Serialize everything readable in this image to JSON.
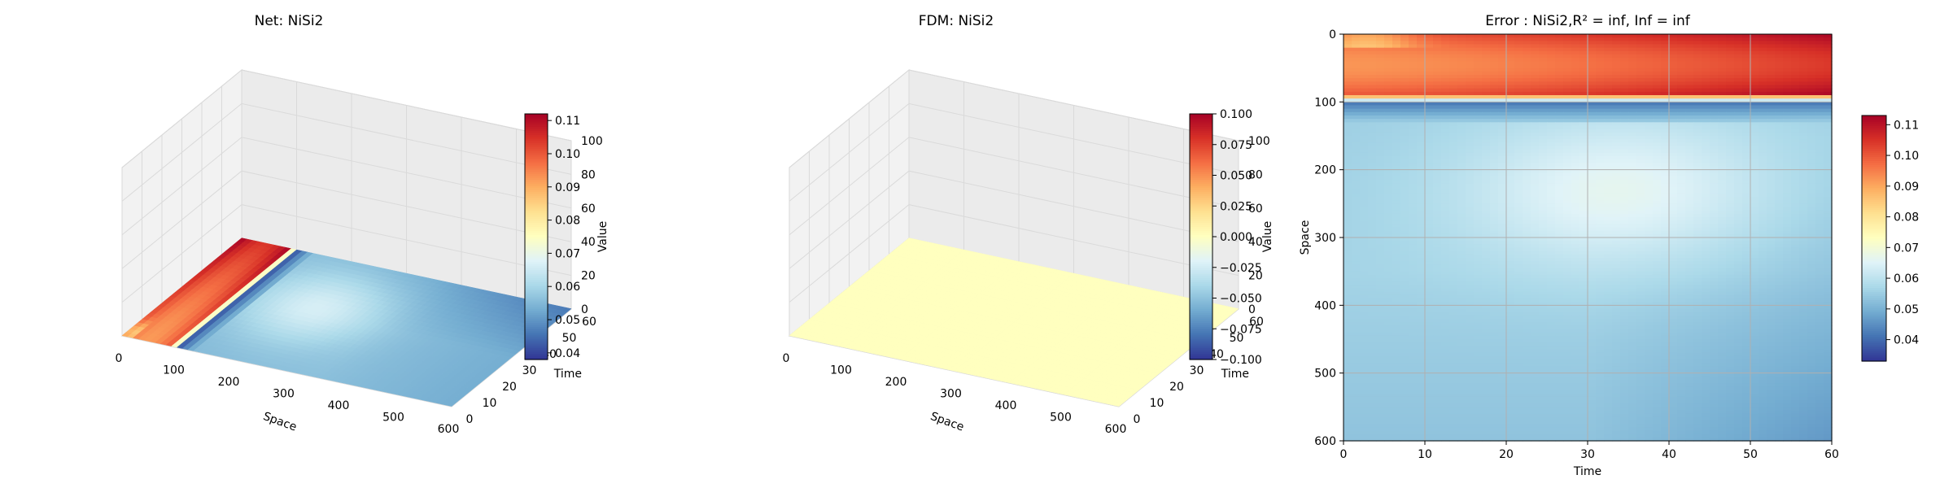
{
  "colors": {
    "rdylbu_r": [
      "#313695",
      "#4575b4",
      "#74add1",
      "#abd9e9",
      "#e0f3f8",
      "#ffffbf",
      "#fee090",
      "#fdae61",
      "#f46d43",
      "#d73027",
      "#a50026"
    ],
    "grid": "#b0b0b0",
    "pane_face": "#f2f2f2",
    "pane_edge": "#cfcfcf"
  },
  "chart_data": [
    {
      "id": "net",
      "type": "surface3d",
      "title": "Net: NiSi2",
      "xlabel": "Space",
      "ylabel": "Time",
      "zlabel": "",
      "xticks": [
        "0",
        "100",
        "200",
        "300",
        "400",
        "500",
        "600"
      ],
      "yticks": [
        "0",
        "10",
        "20",
        "30",
        "40",
        "50",
        "60"
      ],
      "zticks": [
        "0",
        "20",
        "40",
        "60",
        "80",
        "100"
      ],
      "xlim": [
        0,
        600
      ],
      "ylim": [
        0,
        60
      ],
      "zlim": [
        0,
        100
      ],
      "colorbar": {
        "label": "Value",
        "min": 0.038,
        "max": 0.112,
        "ticks": [
          "0.04",
          "0.05",
          "0.06",
          "0.07",
          "0.08",
          "0.09",
          "0.10",
          "0.11"
        ],
        "tick_values": [
          0.04,
          0.05,
          0.06,
          0.07,
          0.08,
          0.09,
          0.1,
          0.11
        ]
      },
      "field": "error_profile"
    },
    {
      "id": "fdm",
      "type": "surface3d",
      "title": "FDM: NiSi2",
      "xlabel": "Space",
      "ylabel": "Time",
      "zlabel": "",
      "xticks": [
        "0",
        "100",
        "200",
        "300",
        "400",
        "500",
        "600"
      ],
      "yticks": [
        "0",
        "10",
        "20",
        "30",
        "40",
        "50",
        "60"
      ],
      "zticks": [
        "0",
        "20",
        "40",
        "60",
        "80",
        "100"
      ],
      "xlim": [
        0,
        600
      ],
      "ylim": [
        0,
        60
      ],
      "zlim": [
        0,
        100
      ],
      "colorbar": {
        "label": "Value",
        "min": -0.1,
        "max": 0.1,
        "ticks": [
          "0.100",
          "0.075",
          "0.050",
          "0.025",
          "0.000",
          "−0.025",
          "−0.050",
          "−0.075",
          "−0.100"
        ],
        "tick_values": [
          0.1,
          0.075,
          0.05,
          0.025,
          0,
          -0.025,
          -0.05,
          -0.075,
          -0.1
        ]
      },
      "field": "constant_zero"
    },
    {
      "id": "error",
      "type": "heatmap",
      "title": "Error : NiSi2,R² = inf, Inf = inf",
      "xlabel": "Time",
      "ylabel": "Space",
      "xticks": [
        "0",
        "10",
        "20",
        "30",
        "40",
        "50",
        "60"
      ],
      "yticks": [
        "0",
        "100",
        "200",
        "300",
        "400",
        "500",
        "600"
      ],
      "xlim": [
        0,
        60
      ],
      "ylim": [
        600,
        0
      ],
      "grid": true,
      "colorbar": {
        "label": "",
        "min": 0.033,
        "max": 0.113,
        "ticks": [
          "0.04",
          "0.05",
          "0.06",
          "0.07",
          "0.08",
          "0.09",
          "0.10",
          "0.11"
        ],
        "tick_values": [
          0.04,
          0.05,
          0.06,
          0.07,
          0.08,
          0.09,
          0.1,
          0.11
        ]
      },
      "field": "error_profile"
    }
  ]
}
